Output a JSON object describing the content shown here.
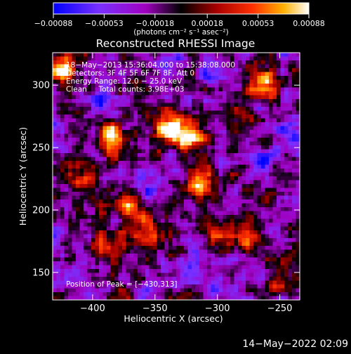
{
  "chart_data": {
    "type": "heatmap",
    "title": "Reconstructed RHESSI Image",
    "xlabel": "Heliocentric X (arcsec)",
    "ylabel": "Heliocentric Y (arcsec)",
    "xlim": [
      -432,
      -234
    ],
    "ylim": [
      128,
      326
    ],
    "x_ticks": [
      {
        "value": -400,
        "label": "−400"
      },
      {
        "value": -350,
        "label": "−350"
      },
      {
        "value": -300,
        "label": "−300"
      },
      {
        "value": -250,
        "label": "−250"
      }
    ],
    "y_ticks": [
      {
        "value": 150,
        "label": "150"
      },
      {
        "value": 200,
        "label": "200"
      },
      {
        "value": 250,
        "label": "250"
      },
      {
        "value": 300,
        "label": "300"
      }
    ],
    "colorbar": {
      "range": [
        -0.00088,
        0.00088
      ],
      "tick_values": [
        -0.00088,
        -0.00053,
        -0.00018,
        0.00018,
        0.00053,
        0.00088
      ],
      "tick_labels": [
        "−0.00088",
        "−0.00053",
        "−0.00018",
        "0.00018",
        "0.00053",
        "0.00088"
      ],
      "unit_label": "(photons cm⁻² s⁻¹ asec⁻²)",
      "colors": [
        "#0000ff",
        "#7a30ff",
        "#a000c0",
        "#000000",
        "#aa0000",
        "#ff3000",
        "#ffb000",
        "#ffffff"
      ]
    },
    "annotations": [
      "18−May−2013 15:36:04.000 to 15:38:08.000",
      "Detectors: 3F 4F 5F 6F 7F 8F, Att 0",
      "Energy Range: 12.0 − 25.0 keV",
      "Clean     Total counts: 3.98E+03"
    ],
    "peak_label": "Position of Peak = [−430,313]",
    "sources": [
      {
        "x": -383,
        "y": 258,
        "intensity": 0.9
      },
      {
        "x": -340,
        "y": 268,
        "intensity": 1.0
      },
      {
        "x": -322,
        "y": 258,
        "intensity": 0.95
      },
      {
        "x": -312,
        "y": 222,
        "intensity": 0.85
      },
      {
        "x": -368,
        "y": 205,
        "intensity": 0.7
      },
      {
        "x": -355,
        "y": 180,
        "intensity": 0.65
      },
      {
        "x": -262,
        "y": 302,
        "intensity": 0.9
      },
      {
        "x": -275,
        "y": 178,
        "intensity": 0.75
      },
      {
        "x": -388,
        "y": 172,
        "intensity": 0.6
      },
      {
        "x": -425,
        "y": 312,
        "intensity": 0.95
      },
      {
        "x": -300,
        "y": 182,
        "intensity": 0.5
      },
      {
        "x": -245,
        "y": 140,
        "intensity": 0.5
      },
      {
        "x": -410,
        "y": 230,
        "intensity": 0.45
      },
      {
        "x": -285,
        "y": 275,
        "intensity": 0.4
      }
    ],
    "negatives": [
      {
        "x": -320,
        "y": 155,
        "intensity": 0.7
      },
      {
        "x": -357,
        "y": 212,
        "intensity": 0.6
      },
      {
        "x": -265,
        "y": 238,
        "intensity": 0.7
      },
      {
        "x": -415,
        "y": 148,
        "intensity": 0.5
      },
      {
        "x": -305,
        "y": 312,
        "intensity": 0.55
      },
      {
        "x": -245,
        "y": 262,
        "intensity": 0.6
      },
      {
        "x": -340,
        "y": 320,
        "intensity": 0.5
      },
      {
        "x": -395,
        "y": 288,
        "intensity": 0.45
      }
    ]
  },
  "footer": {
    "date": "14−May−2022 02:09"
  }
}
